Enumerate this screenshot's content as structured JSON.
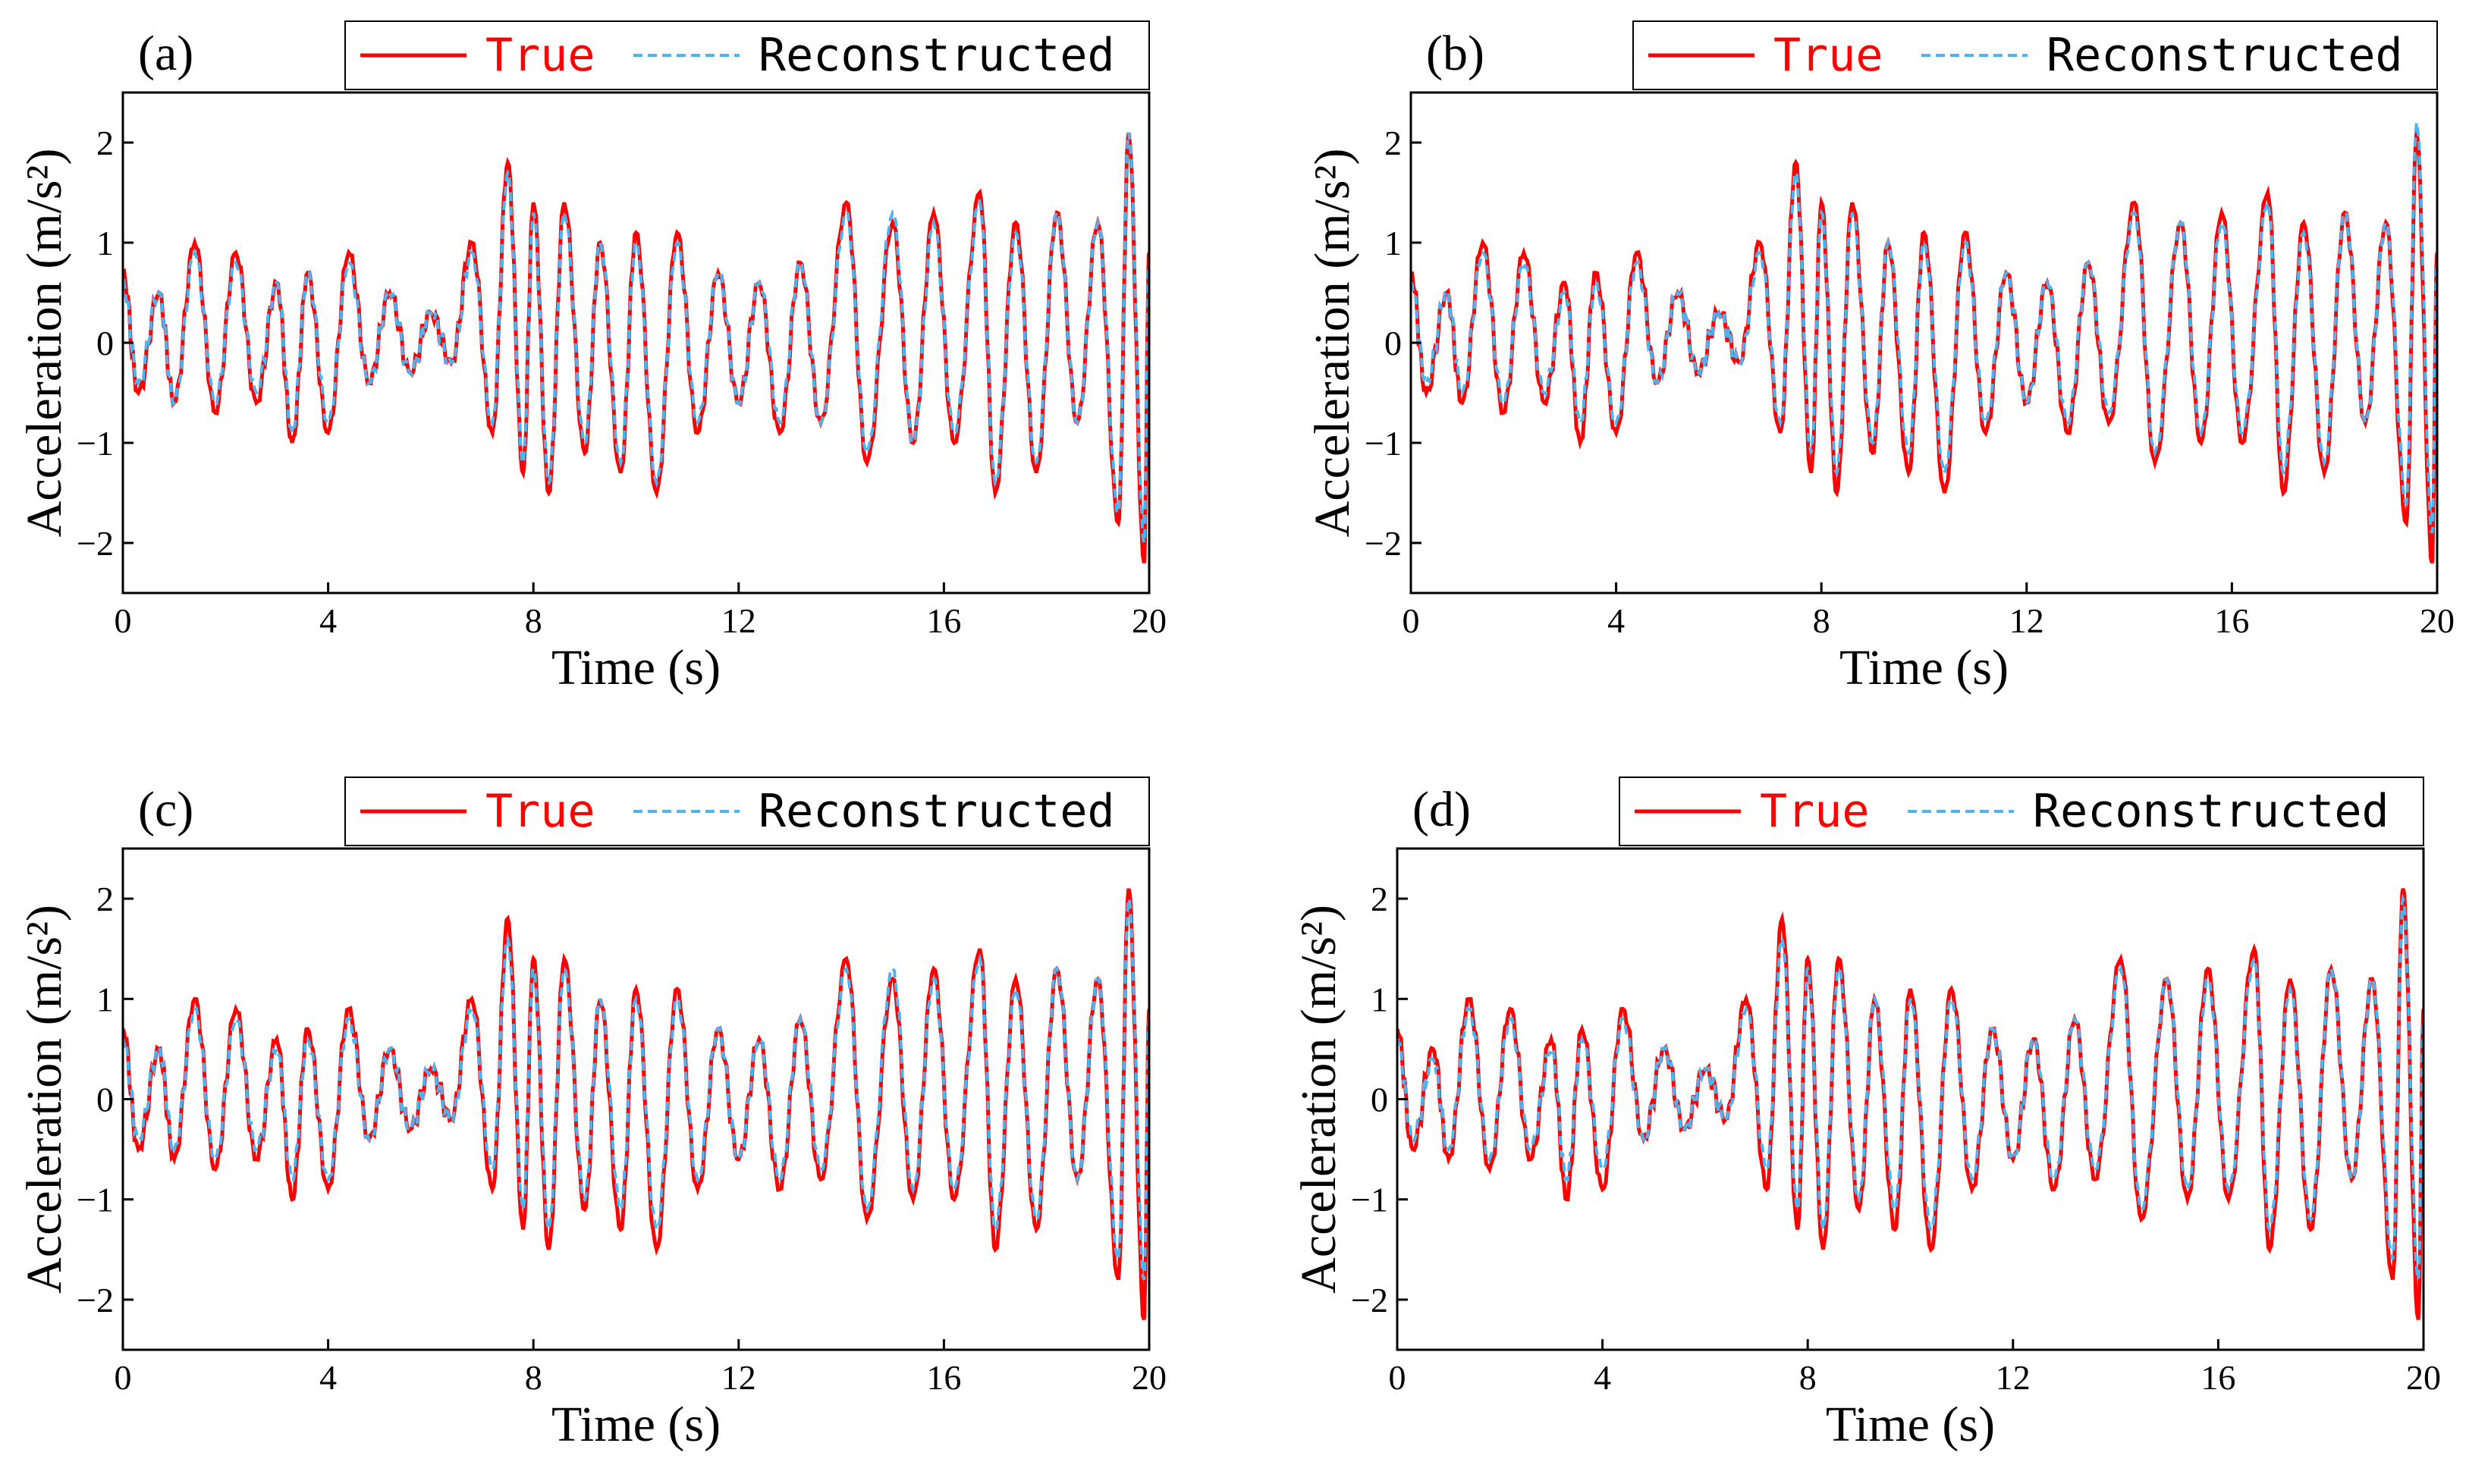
{
  "figure": {
    "colors": {
      "true": "#ff0000",
      "reconstructed": "#4fb3f0",
      "axis": "#000000"
    }
  },
  "chart_data": [
    {
      "type": "line",
      "panel_label": "(a)",
      "xlabel": "Time (s)",
      "ylabel": "Acceleration (m/s²)",
      "xlim": [
        0,
        20
      ],
      "ylim": [
        -2.5,
        2.5
      ],
      "xticks": [
        0,
        4,
        8,
        12,
        16,
        20
      ],
      "xtick_labels": [
        "0",
        "4",
        "8",
        "12",
        "16",
        "20"
      ],
      "yticks": [
        -2,
        -1,
        0,
        1,
        2
      ],
      "ytick_labels": [
        "−2",
        "−1",
        "0",
        "1",
        "2"
      ],
      "legend": {
        "position": "top-right",
        "entries": [
          "True",
          "Reconstructed"
        ]
      },
      "series": [
        {
          "name": "True",
          "style": "solid",
          "color": "#ff0000",
          "x": [
            0.0,
            0.3,
            0.7,
            1.0,
            1.4,
            1.8,
            2.2,
            2.6,
            3.0,
            3.3,
            3.6,
            4.0,
            4.4,
            4.8,
            5.2,
            5.6,
            6.0,
            6.4,
            6.8,
            7.2,
            7.5,
            7.8,
            8.0,
            8.3,
            8.6,
            9.0,
            9.3,
            9.7,
            10.0,
            10.4,
            10.8,
            11.2,
            11.6,
            12.0,
            12.4,
            12.8,
            13.2,
            13.6,
            14.1,
            14.5,
            15.0,
            15.4,
            15.8,
            16.2,
            16.7,
            17.0,
            17.4,
            17.8,
            18.2,
            18.6,
            19.0,
            19.4,
            19.6,
            19.9,
            20.0
          ],
          "y": [
            0.7,
            -0.5,
            0.5,
            -0.6,
            1.0,
            -0.7,
            0.9,
            -0.6,
            0.6,
            -1.0,
            0.7,
            -0.9,
            0.9,
            -0.4,
            0.5,
            -0.3,
            0.3,
            -0.2,
            1.0,
            -0.9,
            1.8,
            -1.3,
            1.4,
            -1.5,
            1.4,
            -1.1,
            1.0,
            -1.3,
            1.1,
            -1.5,
            1.1,
            -0.9,
            0.7,
            -0.6,
            0.6,
            -0.9,
            0.8,
            -0.8,
            1.4,
            -1.2,
            1.2,
            -1.0,
            1.3,
            -1.0,
            1.5,
            -1.5,
            1.2,
            -1.3,
            1.3,
            -0.8,
            1.2,
            -1.8,
            2.1,
            -2.2,
            0.9
          ]
        },
        {
          "name": "Reconstructed",
          "style": "dashed",
          "color": "#4fb3f0",
          "x": [
            0.0,
            0.3,
            0.7,
            1.0,
            1.4,
            1.8,
            2.2,
            2.6,
            3.0,
            3.3,
            3.6,
            4.0,
            4.4,
            4.8,
            5.2,
            5.6,
            6.0,
            6.4,
            6.8,
            7.2,
            7.5,
            7.8,
            8.0,
            8.3,
            8.6,
            9.0,
            9.3,
            9.7,
            10.0,
            10.4,
            10.8,
            11.2,
            11.6,
            12.0,
            12.4,
            12.8,
            13.2,
            13.6,
            14.1,
            14.5,
            15.0,
            15.4,
            15.8,
            16.2,
            16.7,
            17.0,
            17.4,
            17.8,
            18.2,
            18.6,
            19.0,
            19.4,
            19.6,
            19.9,
            20.0
          ],
          "y": [
            0.6,
            -0.4,
            0.5,
            -0.6,
            0.9,
            -0.6,
            0.8,
            -0.5,
            0.6,
            -0.9,
            0.7,
            -0.8,
            0.8,
            -0.4,
            0.5,
            -0.3,
            0.3,
            -0.2,
            0.9,
            -0.8,
            1.7,
            -1.2,
            1.3,
            -1.4,
            1.3,
            -1.0,
            1.0,
            -1.2,
            1.0,
            -1.4,
            1.0,
            -0.8,
            0.7,
            -0.6,
            0.6,
            -0.8,
            0.8,
            -0.8,
            1.3,
            -1.1,
            1.3,
            -1.0,
            1.2,
            -0.9,
            1.4,
            -1.4,
            1.1,
            -1.2,
            1.3,
            -0.8,
            1.2,
            -1.7,
            2.1,
            -2.0,
            0.8
          ]
        }
      ]
    },
    {
      "type": "line",
      "panel_label": "(b)",
      "xlabel": "Time (s)",
      "ylabel": "Acceleration (m/s²)",
      "xlim": [
        0,
        20
      ],
      "ylim": [
        -2.5,
        2.5
      ],
      "xticks": [
        0,
        4,
        8,
        12,
        16,
        20
      ],
      "xtick_labels": [
        "0",
        "4",
        "8",
        "12",
        "16",
        "20"
      ],
      "yticks": [
        -2,
        -1,
        0,
        1,
        2
      ],
      "ytick_labels": [
        "−2",
        "−1",
        "0",
        "1",
        "2"
      ],
      "legend": {
        "position": "top-right",
        "entries": [
          "True",
          "Reconstructed"
        ]
      },
      "series": [
        {
          "name": "True",
          "style": "solid",
          "color": "#ff0000",
          "x": [
            0.0,
            0.3,
            0.7,
            1.0,
            1.4,
            1.8,
            2.2,
            2.6,
            3.0,
            3.3,
            3.6,
            4.0,
            4.4,
            4.8,
            5.2,
            5.6,
            6.0,
            6.4,
            6.8,
            7.2,
            7.5,
            7.8,
            8.0,
            8.3,
            8.6,
            9.0,
            9.3,
            9.7,
            10.0,
            10.4,
            10.8,
            11.2,
            11.6,
            12.0,
            12.4,
            12.8,
            13.2,
            13.6,
            14.1,
            14.5,
            15.0,
            15.4,
            15.8,
            16.2,
            16.7,
            17.0,
            17.4,
            17.8,
            18.2,
            18.6,
            19.0,
            19.4,
            19.6,
            19.9,
            20.0
          ],
          "y": [
            0.7,
            -0.5,
            0.5,
            -0.6,
            1.0,
            -0.7,
            0.9,
            -0.6,
            0.6,
            -1.0,
            0.7,
            -0.9,
            0.9,
            -0.4,
            0.5,
            -0.3,
            0.3,
            -0.2,
            1.0,
            -0.9,
            1.8,
            -1.3,
            1.4,
            -1.5,
            1.4,
            -1.1,
            1.0,
            -1.3,
            1.1,
            -1.5,
            1.1,
            -0.9,
            0.7,
            -0.6,
            0.6,
            -0.9,
            0.8,
            -0.8,
            1.4,
            -1.2,
            1.2,
            -1.0,
            1.3,
            -1.0,
            1.5,
            -1.5,
            1.2,
            -1.3,
            1.3,
            -0.8,
            1.2,
            -1.8,
            2.1,
            -2.2,
            0.9
          ]
        },
        {
          "name": "Reconstructed",
          "style": "dashed",
          "color": "#4fb3f0",
          "x": [
            0.0,
            0.3,
            0.7,
            1.0,
            1.4,
            1.8,
            2.2,
            2.6,
            3.0,
            3.3,
            3.6,
            4.0,
            4.4,
            4.8,
            5.2,
            5.6,
            6.0,
            6.4,
            6.8,
            7.2,
            7.5,
            7.8,
            8.0,
            8.3,
            8.6,
            9.0,
            9.3,
            9.7,
            10.0,
            10.4,
            10.8,
            11.2,
            11.6,
            12.0,
            12.4,
            12.8,
            13.2,
            13.6,
            14.1,
            14.5,
            15.0,
            15.4,
            15.8,
            16.2,
            16.7,
            17.0,
            17.4,
            17.8,
            18.2,
            18.6,
            19.0,
            19.4,
            19.6,
            19.9,
            20.0
          ],
          "y": [
            0.6,
            -0.4,
            0.5,
            -0.5,
            0.9,
            -0.6,
            0.8,
            -0.5,
            0.5,
            -0.8,
            0.6,
            -0.8,
            0.8,
            -0.4,
            0.5,
            -0.3,
            0.3,
            -0.2,
            0.9,
            -0.8,
            1.7,
            -1.1,
            1.3,
            -1.3,
            1.3,
            -1.0,
            1.0,
            -1.1,
            1.0,
            -1.3,
            1.0,
            -0.8,
            0.7,
            -0.6,
            0.6,
            -0.8,
            0.8,
            -0.7,
            1.3,
            -1.1,
            1.2,
            -0.9,
            1.2,
            -0.9,
            1.4,
            -1.3,
            1.1,
            -1.2,
            1.3,
            -0.8,
            1.2,
            -1.6,
            2.2,
            -1.9,
            0.8
          ]
        }
      ]
    },
    {
      "type": "line",
      "panel_label": "(c)",
      "xlabel": "Time (s)",
      "ylabel": "Acceleration (m/s²)",
      "xlim": [
        0,
        20
      ],
      "ylim": [
        -2.5,
        2.5
      ],
      "xticks": [
        0,
        4,
        8,
        12,
        16,
        20
      ],
      "xtick_labels": [
        "0",
        "4",
        "8",
        "12",
        "16",
        "20"
      ],
      "yticks": [
        -2,
        -1,
        0,
        1,
        2
      ],
      "ytick_labels": [
        "−2",
        "−1",
        "0",
        "1",
        "2"
      ],
      "legend": {
        "position": "top-right",
        "entries": [
          "True",
          "Reconstructed"
        ]
      },
      "series": [
        {
          "name": "True",
          "style": "solid",
          "color": "#ff0000",
          "x": [
            0.0,
            0.3,
            0.7,
            1.0,
            1.4,
            1.8,
            2.2,
            2.6,
            3.0,
            3.3,
            3.6,
            4.0,
            4.4,
            4.8,
            5.2,
            5.6,
            6.0,
            6.4,
            6.8,
            7.2,
            7.5,
            7.8,
            8.0,
            8.3,
            8.6,
            9.0,
            9.3,
            9.7,
            10.0,
            10.4,
            10.8,
            11.2,
            11.6,
            12.0,
            12.4,
            12.8,
            13.2,
            13.6,
            14.1,
            14.5,
            15.0,
            15.4,
            15.8,
            16.2,
            16.7,
            17.0,
            17.4,
            17.8,
            18.2,
            18.6,
            19.0,
            19.4,
            19.6,
            19.9,
            20.0
          ],
          "y": [
            0.7,
            -0.5,
            0.5,
            -0.6,
            1.0,
            -0.7,
            0.9,
            -0.6,
            0.6,
            -1.0,
            0.7,
            -0.9,
            0.9,
            -0.4,
            0.5,
            -0.3,
            0.3,
            -0.2,
            1.0,
            -0.9,
            1.8,
            -1.3,
            1.4,
            -1.5,
            1.4,
            -1.1,
            1.0,
            -1.3,
            1.1,
            -1.5,
            1.1,
            -0.9,
            0.7,
            -0.6,
            0.6,
            -0.9,
            0.8,
            -0.8,
            1.4,
            -1.2,
            1.2,
            -1.0,
            1.3,
            -1.0,
            1.5,
            -1.5,
            1.2,
            -1.3,
            1.3,
            -0.8,
            1.2,
            -1.8,
            2.1,
            -2.2,
            0.9
          ]
        },
        {
          "name": "Reconstructed",
          "style": "dashed",
          "color": "#4fb3f0",
          "x": [
            0.0,
            0.3,
            0.7,
            1.0,
            1.4,
            1.8,
            2.2,
            2.6,
            3.0,
            3.3,
            3.6,
            4.0,
            4.4,
            4.8,
            5.2,
            5.6,
            6.0,
            6.4,
            6.8,
            7.2,
            7.5,
            7.8,
            8.0,
            8.3,
            8.6,
            9.0,
            9.3,
            9.7,
            10.0,
            10.4,
            10.8,
            11.2,
            11.6,
            12.0,
            12.4,
            12.8,
            13.2,
            13.6,
            14.1,
            14.5,
            15.0,
            15.4,
            15.8,
            16.2,
            16.7,
            17.0,
            17.4,
            17.8,
            18.2,
            18.6,
            19.0,
            19.4,
            19.6,
            19.9,
            20.0
          ],
          "y": [
            0.6,
            -0.4,
            0.5,
            -0.5,
            0.9,
            -0.6,
            0.8,
            -0.5,
            0.5,
            -0.8,
            0.6,
            -0.8,
            0.8,
            -0.4,
            0.5,
            -0.3,
            0.3,
            -0.2,
            0.9,
            -0.7,
            1.6,
            -1.1,
            1.3,
            -1.3,
            1.3,
            -1.0,
            1.0,
            -1.1,
            1.0,
            -1.3,
            1.0,
            -0.8,
            0.7,
            -0.6,
            0.6,
            -0.8,
            0.8,
            -0.7,
            1.3,
            -1.1,
            1.3,
            -0.9,
            1.2,
            -0.9,
            1.4,
            -1.3,
            1.1,
            -1.2,
            1.3,
            -0.8,
            1.2,
            -1.6,
            2.0,
            -1.8,
            0.8
          ]
        }
      ]
    },
    {
      "type": "line",
      "panel_label": "(d)",
      "xlabel": "Time (s)",
      "ylabel": "Acceleration (m/s²)",
      "xlim": [
        0,
        20
      ],
      "ylim": [
        -2.5,
        2.5
      ],
      "xticks": [
        0,
        4,
        8,
        12,
        16,
        20
      ],
      "xtick_labels": [
        "0",
        "4",
        "8",
        "12",
        "16",
        "20"
      ],
      "yticks": [
        -2,
        -1,
        0,
        1,
        2
      ],
      "ytick_labels": [
        "−2",
        "−1",
        "0",
        "1",
        "2"
      ],
      "legend": {
        "position": "top-right",
        "entries": [
          "True",
          "Reconstructed"
        ]
      },
      "series": [
        {
          "name": "True",
          "style": "solid",
          "color": "#ff0000",
          "x": [
            0.0,
            0.3,
            0.7,
            1.0,
            1.4,
            1.8,
            2.2,
            2.6,
            3.0,
            3.3,
            3.6,
            4.0,
            4.4,
            4.8,
            5.2,
            5.6,
            6.0,
            6.4,
            6.8,
            7.2,
            7.5,
            7.8,
            8.0,
            8.3,
            8.6,
            9.0,
            9.3,
            9.7,
            10.0,
            10.4,
            10.8,
            11.2,
            11.6,
            12.0,
            12.4,
            12.8,
            13.2,
            13.6,
            14.1,
            14.5,
            15.0,
            15.4,
            15.8,
            16.2,
            16.7,
            17.0,
            17.4,
            17.8,
            18.2,
            18.6,
            19.0,
            19.4,
            19.6,
            19.9,
            20.0
          ],
          "y": [
            0.7,
            -0.5,
            0.5,
            -0.6,
            1.0,
            -0.7,
            0.9,
            -0.6,
            0.6,
            -1.0,
            0.7,
            -0.9,
            0.9,
            -0.4,
            0.5,
            -0.3,
            0.3,
            -0.2,
            1.0,
            -0.9,
            1.8,
            -1.3,
            1.4,
            -1.5,
            1.4,
            -1.1,
            1.0,
            -1.3,
            1.1,
            -1.5,
            1.1,
            -0.9,
            0.7,
            -0.6,
            0.6,
            -0.9,
            0.8,
            -0.8,
            1.4,
            -1.2,
            1.2,
            -1.0,
            1.3,
            -1.0,
            1.5,
            -1.5,
            1.2,
            -1.3,
            1.3,
            -0.8,
            1.2,
            -1.8,
            2.1,
            -2.2,
            0.9
          ]
        },
        {
          "name": "Reconstructed",
          "style": "dashed",
          "color": "#4fb3f0",
          "x": [
            0.0,
            0.3,
            0.7,
            1.0,
            1.4,
            1.8,
            2.2,
            2.6,
            3.0,
            3.3,
            3.6,
            4.0,
            4.4,
            4.8,
            5.2,
            5.6,
            6.0,
            6.4,
            6.8,
            7.2,
            7.5,
            7.8,
            8.0,
            8.3,
            8.6,
            9.0,
            9.3,
            9.7,
            10.0,
            10.4,
            10.8,
            11.2,
            11.6,
            12.0,
            12.4,
            12.8,
            13.2,
            13.6,
            14.1,
            14.5,
            15.0,
            15.4,
            15.8,
            16.2,
            16.7,
            17.0,
            17.4,
            17.8,
            18.2,
            18.6,
            19.0,
            19.4,
            19.6,
            19.9,
            20.0
          ],
          "y": [
            0.6,
            -0.4,
            0.4,
            -0.5,
            0.9,
            -0.6,
            0.8,
            -0.5,
            0.5,
            -0.8,
            0.6,
            -0.7,
            0.8,
            -0.4,
            0.5,
            -0.3,
            0.3,
            -0.2,
            0.9,
            -0.7,
            1.6,
            -1.1,
            1.3,
            -1.3,
            1.3,
            -1.0,
            1.0,
            -1.1,
            1.0,
            -1.3,
            1.0,
            -0.8,
            0.7,
            -0.6,
            0.6,
            -0.8,
            0.8,
            -0.7,
            1.3,
            -1.1,
            1.2,
            -0.9,
            1.2,
            -0.9,
            1.4,
            -1.3,
            1.1,
            -1.2,
            1.3,
            -0.8,
            1.2,
            -1.6,
            2.0,
            -1.8,
            0.8
          ]
        }
      ]
    }
  ]
}
